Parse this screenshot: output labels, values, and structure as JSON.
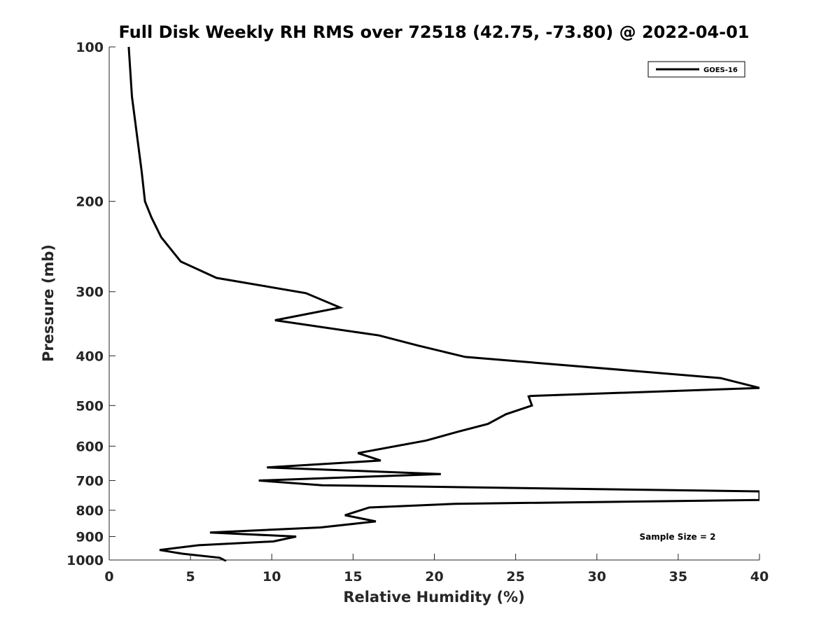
{
  "chart_data": {
    "type": "line",
    "title": "Full Disk Weekly RH RMS over 72518 (42.75, -73.80) @ 2022-04-01",
    "xlabel": "Relative Humidity (%)",
    "ylabel": "Pressure (mb)",
    "xlim": [
      0,
      40
    ],
    "ylim": [
      1000,
      100
    ],
    "yscale": "log",
    "grid": false,
    "x_ticks": [
      0,
      5,
      10,
      15,
      20,
      25,
      30,
      35,
      40
    ],
    "y_ticks": [
      100,
      200,
      300,
      400,
      500,
      600,
      700,
      800,
      900,
      1000
    ],
    "legend": {
      "position": "top-right",
      "entries": [
        "GOES-16"
      ]
    },
    "annotation": "Sample Size = 2",
    "series": [
      {
        "name": "GOES-16",
        "color": "#000000",
        "x": [
          1.2,
          1.4,
          2.0,
          2.2,
          2.6,
          3.2,
          4.4,
          6.6,
          12.1,
          14.2,
          10.2,
          16.6,
          19.0,
          21.9,
          37.6,
          40.0,
          25.9,
          25.8,
          26.0,
          24.4,
          23.3,
          21.4,
          19.5,
          15.3,
          16.7,
          9.7,
          20.4,
          9.2,
          13.1,
          40.0,
          40.0,
          21.3,
          16.0,
          14.5,
          16.4,
          13.0,
          6.2,
          11.5,
          10.1,
          5.5,
          3.1,
          4.5,
          6.8,
          7.2
        ],
        "y": [
          100,
          125,
          175,
          200,
          215,
          235,
          262,
          282,
          302,
          322,
          341,
          365,
          382,
          402,
          442,
          462,
          479,
          480,
          500,
          520,
          543,
          563,
          585,
          619,
          640,
          660,
          680,
          700,
          715,
          735,
          764,
          777,
          790,
          818,
          841,
          864,
          884,
          900,
          920,
          936,
          956,
          972,
          990,
          1005
        ]
      }
    ]
  }
}
